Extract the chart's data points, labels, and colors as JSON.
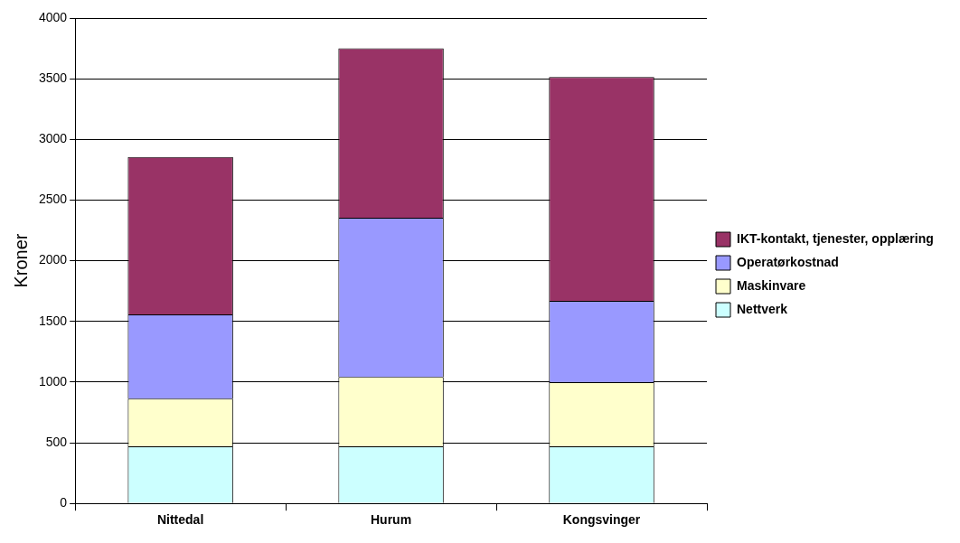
{
  "chart_data": {
    "type": "bar",
    "stacked": true,
    "ylabel": "Kroner",
    "categories": [
      "Nittedal",
      "Hurum",
      "Kongsvinger"
    ],
    "series": [
      {
        "name": "Nettverk",
        "color": "#ccffff",
        "values": [
          470,
          470,
          470
        ]
      },
      {
        "name": "Maskinvare",
        "color": "#ffffcc",
        "values": [
          394,
          572,
          530
        ]
      },
      {
        "name": "Operatørkostnad",
        "color": "#9999ff",
        "values": [
          694,
          1313,
          670
        ]
      },
      {
        "name": "IKT-kontakt, tjenester, opplæring",
        "color": "#993366",
        "values": [
          1297,
          1395,
          1845
        ]
      }
    ],
    "ylim": [
      0,
      4000
    ],
    "yticks": [
      0,
      500,
      1000,
      1500,
      2000,
      2500,
      3000,
      3500,
      4000
    ],
    "grid": "y",
    "legend": "right"
  }
}
